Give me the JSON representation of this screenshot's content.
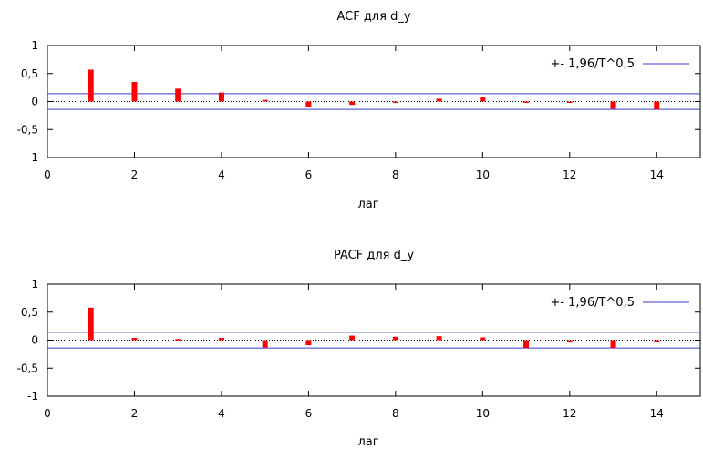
{
  "chart_data": [
    {
      "type": "bar",
      "title": "ACF для d_y",
      "xlabel": "лаг",
      "ylabel": "",
      "xlim": [
        0,
        15
      ],
      "ylim": [
        -1,
        1
      ],
      "xticks": [
        0,
        2,
        4,
        6,
        8,
        10,
        12,
        14
      ],
      "yticks": [
        1,
        0.5,
        0,
        -0.5,
        -1
      ],
      "ytick_labels": [
        "1",
        "0,5",
        "0",
        "-0,5",
        "-1"
      ],
      "lags": [
        1,
        2,
        3,
        4,
        5,
        6,
        7,
        8,
        9,
        10,
        11,
        12,
        13,
        14
      ],
      "values": [
        0.57,
        0.35,
        0.23,
        0.16,
        0.03,
        -0.09,
        -0.06,
        -0.01,
        0.05,
        0.08,
        -0.01,
        -0.02,
        -0.13,
        -0.14
      ],
      "band": 0.14,
      "legend": "+- 1,96/T^0,5",
      "legend_position": "top-right",
      "bar_color": "#ff0000",
      "band_color": "#3a3acd",
      "grid": false
    },
    {
      "type": "bar",
      "title": "PACF для d_y",
      "xlabel": "лаг",
      "ylabel": "",
      "xlim": [
        0,
        15
      ],
      "ylim": [
        -1,
        1
      ],
      "xticks": [
        0,
        2,
        4,
        6,
        8,
        10,
        12,
        14
      ],
      "yticks": [
        1,
        0.5,
        0,
        -0.5,
        -1
      ],
      "ytick_labels": [
        "1",
        "0,5",
        "0",
        "-0,5",
        "-1"
      ],
      "lags": [
        1,
        2,
        3,
        4,
        5,
        6,
        7,
        8,
        9,
        10,
        11,
        12,
        13,
        14
      ],
      "values": [
        0.58,
        0.04,
        0.02,
        0.04,
        -0.13,
        -0.09,
        0.08,
        0.06,
        0.07,
        0.05,
        -0.14,
        -0.02,
        -0.14,
        -0.01
      ],
      "band": 0.14,
      "legend": "+- 1,96/T^0,5",
      "legend_position": "top-right",
      "bar_color": "#ff0000",
      "band_color": "#3a3acd",
      "grid": false
    }
  ]
}
